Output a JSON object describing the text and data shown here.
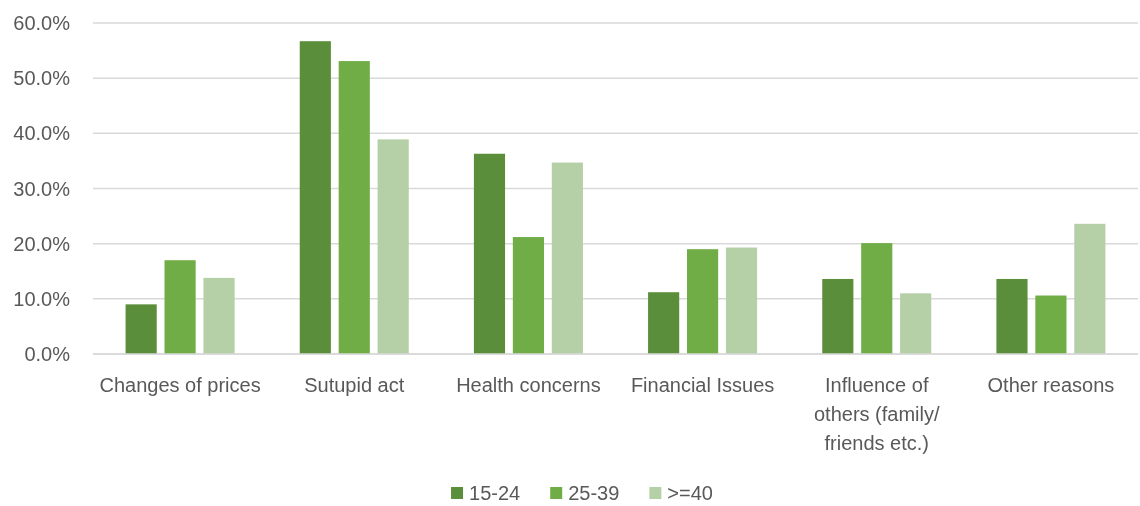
{
  "chart_data": {
    "type": "bar",
    "categories": [
      "Changes of prices",
      "Sutupid act",
      "Health concerns",
      "Financial Issues",
      "Influence of others (family/ friends etc.)",
      "Other reasons"
    ],
    "series": [
      {
        "name": "15-24",
        "color": "#5b8e3a",
        "values": [
          9.0,
          56.7,
          36.3,
          11.2,
          13.6,
          13.6
        ]
      },
      {
        "name": "25-39",
        "color": "#70ad47",
        "values": [
          17.0,
          53.1,
          21.2,
          19.0,
          20.1,
          10.6
        ]
      },
      {
        "name": ">=40",
        "color": "#b5cfa7",
        "values": [
          13.8,
          38.9,
          34.7,
          19.3,
          11.0,
          23.6
        ]
      }
    ],
    "ylim": [
      0,
      60
    ],
    "yticks": [
      {
        "value": 0,
        "label": "0.0%"
      },
      {
        "value": 10,
        "label": "10.0%"
      },
      {
        "value": 20,
        "label": "20.0%"
      },
      {
        "value": 30,
        "label": "30.0%"
      },
      {
        "value": 40,
        "label": "40.0%"
      },
      {
        "value": 50,
        "label": "50.0%"
      },
      {
        "value": 60,
        "label": "60.0%"
      }
    ],
    "grid": "y",
    "legend": "bottom"
  }
}
